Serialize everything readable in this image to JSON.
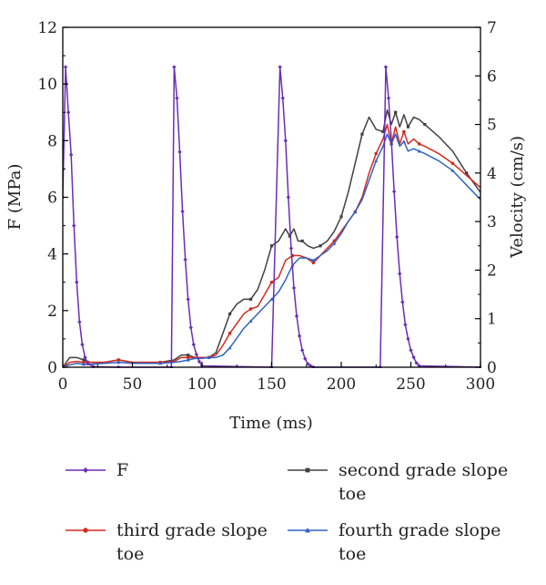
{
  "chart_data": {
    "type": "line",
    "xlabel": "Time (ms)",
    "ylabel": "F (MPa)",
    "y2label": "Velocity (cm/s)",
    "xlim": [
      0,
      300
    ],
    "ylim": [
      0,
      12
    ],
    "y2lim": [
      0,
      7
    ],
    "xticks": [
      0,
      50,
      100,
      150,
      200,
      250,
      300
    ],
    "yticks": [
      0,
      2,
      4,
      6,
      8,
      10,
      12
    ],
    "y2ticks": [
      0,
      1,
      2,
      3,
      4,
      5,
      6,
      7
    ],
    "grid": false,
    "legend_position": "bottom",
    "series": [
      {
        "name": "F",
        "axis": "left",
        "color": "#6a2db5",
        "marker": "diamond",
        "x": [
          0,
          2,
          4,
          6,
          8,
          10,
          12,
          14,
          16,
          18,
          22,
          40,
          78,
          80,
          82,
          84,
          86,
          88,
          90,
          92,
          94,
          96,
          98,
          100,
          150,
          156,
          158,
          160,
          162,
          164,
          166,
          168,
          170,
          172,
          174,
          176,
          178,
          180,
          228,
          232,
          234,
          236,
          238,
          240,
          242,
          244,
          246,
          248,
          250,
          252,
          254,
          256,
          300
        ],
        "y": [
          6.0,
          10.6,
          9.0,
          7.5,
          5.0,
          3.0,
          1.6,
          0.8,
          0.35,
          0.12,
          0.02,
          0.0,
          0.0,
          10.6,
          9.5,
          7.6,
          5.5,
          3.8,
          2.4,
          1.4,
          0.8,
          0.45,
          0.2,
          0.05,
          0.0,
          10.6,
          9.5,
          8.0,
          6.0,
          4.2,
          2.8,
          1.8,
          1.1,
          0.6,
          0.3,
          0.12,
          0.05,
          0.0,
          0.0,
          10.6,
          9.5,
          8.0,
          6.2,
          4.6,
          3.3,
          2.3,
          1.5,
          1.0,
          0.6,
          0.35,
          0.15,
          0.05,
          0.0
        ]
      },
      {
        "name": "second grade slope toe",
        "axis": "right",
        "color": "#404040",
        "marker": "square",
        "x": [
          0,
          5,
          10,
          15,
          20,
          30,
          40,
          50,
          60,
          70,
          80,
          85,
          90,
          95,
          100,
          105,
          110,
          115,
          120,
          125,
          130,
          135,
          140,
          145,
          150,
          155,
          160,
          163,
          166,
          169,
          172,
          176,
          180,
          185,
          190,
          195,
          200,
          205,
          210,
          215,
          220,
          225,
          230,
          233,
          236,
          239,
          242,
          245,
          248,
          252,
          256,
          260,
          270,
          280,
          290,
          300
        ],
        "y": [
          0.0,
          0.2,
          0.2,
          0.15,
          0.1,
          0.1,
          0.15,
          0.1,
          0.1,
          0.1,
          0.15,
          0.25,
          0.25,
          0.2,
          0.2,
          0.2,
          0.3,
          0.7,
          1.1,
          1.3,
          1.4,
          1.4,
          1.6,
          2.0,
          2.5,
          2.6,
          2.85,
          2.7,
          2.85,
          2.6,
          2.6,
          2.5,
          2.45,
          2.5,
          2.6,
          2.8,
          3.1,
          3.6,
          4.2,
          4.8,
          5.15,
          4.9,
          4.85,
          5.3,
          5.0,
          5.25,
          4.95,
          5.2,
          4.95,
          5.15,
          5.1,
          5.0,
          4.75,
          4.45,
          4.0,
          3.6
        ]
      },
      {
        "name": "third grade slope toe",
        "axis": "right",
        "color": "#d42a1e",
        "marker": "circle",
        "x": [
          0,
          5,
          10,
          15,
          20,
          30,
          40,
          50,
          60,
          70,
          80,
          85,
          90,
          95,
          100,
          105,
          110,
          115,
          120,
          125,
          130,
          135,
          140,
          145,
          150,
          155,
          160,
          165,
          170,
          175,
          180,
          185,
          190,
          195,
          200,
          205,
          210,
          215,
          220,
          225,
          230,
          233,
          236,
          239,
          242,
          245,
          248,
          252,
          256,
          260,
          270,
          280,
          290,
          300
        ],
        "y": [
          0.0,
          0.1,
          0.12,
          0.1,
          0.1,
          0.1,
          0.15,
          0.1,
          0.1,
          0.1,
          0.12,
          0.2,
          0.2,
          0.2,
          0.2,
          0.2,
          0.25,
          0.45,
          0.7,
          0.9,
          1.1,
          1.2,
          1.25,
          1.5,
          1.75,
          1.85,
          2.2,
          2.3,
          2.3,
          2.25,
          2.15,
          2.3,
          2.45,
          2.6,
          2.8,
          3.0,
          3.2,
          3.5,
          4.0,
          4.4,
          4.7,
          5.0,
          4.6,
          4.95,
          4.6,
          4.85,
          4.6,
          4.7,
          4.6,
          4.55,
          4.4,
          4.2,
          3.95,
          3.7
        ]
      },
      {
        "name": "fourth grade slope toe",
        "axis": "right",
        "color": "#2f62c7",
        "marker": "triangle",
        "x": [
          0,
          5,
          10,
          15,
          20,
          30,
          40,
          50,
          60,
          70,
          80,
          85,
          90,
          95,
          100,
          105,
          110,
          115,
          120,
          125,
          130,
          135,
          140,
          145,
          150,
          155,
          160,
          165,
          170,
          175,
          180,
          185,
          190,
          195,
          200,
          205,
          210,
          215,
          220,
          225,
          230,
          233,
          236,
          239,
          242,
          245,
          248,
          252,
          256,
          260,
          270,
          280,
          290,
          300
        ],
        "y": [
          0.0,
          0.05,
          0.08,
          0.06,
          0.06,
          0.08,
          0.1,
          0.08,
          0.08,
          0.08,
          0.1,
          0.12,
          0.15,
          0.18,
          0.18,
          0.2,
          0.2,
          0.25,
          0.4,
          0.6,
          0.8,
          0.95,
          1.1,
          1.25,
          1.4,
          1.55,
          1.8,
          2.1,
          2.25,
          2.25,
          2.2,
          2.3,
          2.4,
          2.55,
          2.75,
          3.0,
          3.2,
          3.45,
          3.85,
          4.25,
          4.55,
          4.8,
          4.6,
          4.8,
          4.55,
          4.65,
          4.45,
          4.5,
          4.45,
          4.4,
          4.25,
          4.05,
          3.75,
          3.45
        ]
      }
    ]
  }
}
